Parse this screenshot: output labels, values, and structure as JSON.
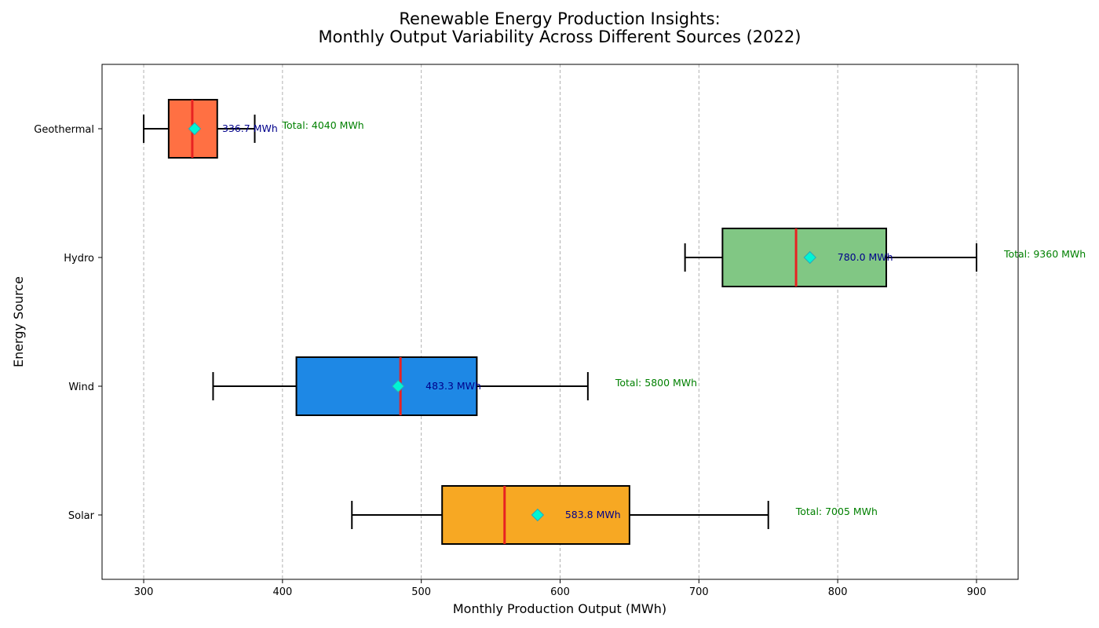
{
  "chart_data": {
    "type": "boxplot",
    "orientation": "horizontal",
    "title_line1": "Renewable Energy Production Insights:",
    "title_line2": "Monthly Output Variability Across Different Sources (2022)",
    "xlabel": "Monthly Production Output (MWh)",
    "ylabel": "Energy Source",
    "xlim": [
      270,
      930
    ],
    "xticks": [
      300,
      400,
      500,
      600,
      700,
      800,
      900
    ],
    "grid": "vertical dashed",
    "categories": [
      "Solar",
      "Wind",
      "Hydro",
      "Geothermal"
    ],
    "series": [
      {
        "category": "Solar",
        "whisker_low": 450,
        "q1": 515,
        "median": 560,
        "q3": 650,
        "whisker_high": 750,
        "mean": 583.8,
        "mean_label": "583.8 MWh",
        "total_label": "Total: 7005 MWh",
        "color": "#f7a823"
      },
      {
        "category": "Wind",
        "whisker_low": 350,
        "q1": 410,
        "median": 485,
        "q3": 540,
        "whisker_high": 620,
        "mean": 483.3,
        "mean_label": "483.3 MWh",
        "total_label": "Total: 5800 MWh",
        "color": "#1e88e5"
      },
      {
        "category": "Hydro",
        "whisker_low": 690,
        "q1": 717,
        "median": 770,
        "q3": 835,
        "whisker_high": 900,
        "mean": 780.0,
        "mean_label": "780.0 MWh",
        "total_label": "Total: 9360 MWh",
        "color": "#81c784"
      },
      {
        "category": "Geothermal",
        "whisker_low": 300,
        "q1": 318,
        "median": 335,
        "q3": 353,
        "whisker_high": 380,
        "mean": 336.7,
        "mean_label": "336.7 MWh",
        "total_label": "Total: 4040 MWh",
        "color": "#ff7043"
      }
    ],
    "colors": {
      "median": "#e82222",
      "mean_marker_fill": "#00f5d4",
      "mean_marker_edge": "#2aa8b8",
      "mean_label": "#00008b",
      "total_label": "#008000",
      "grid": "#a8a8a8"
    }
  }
}
